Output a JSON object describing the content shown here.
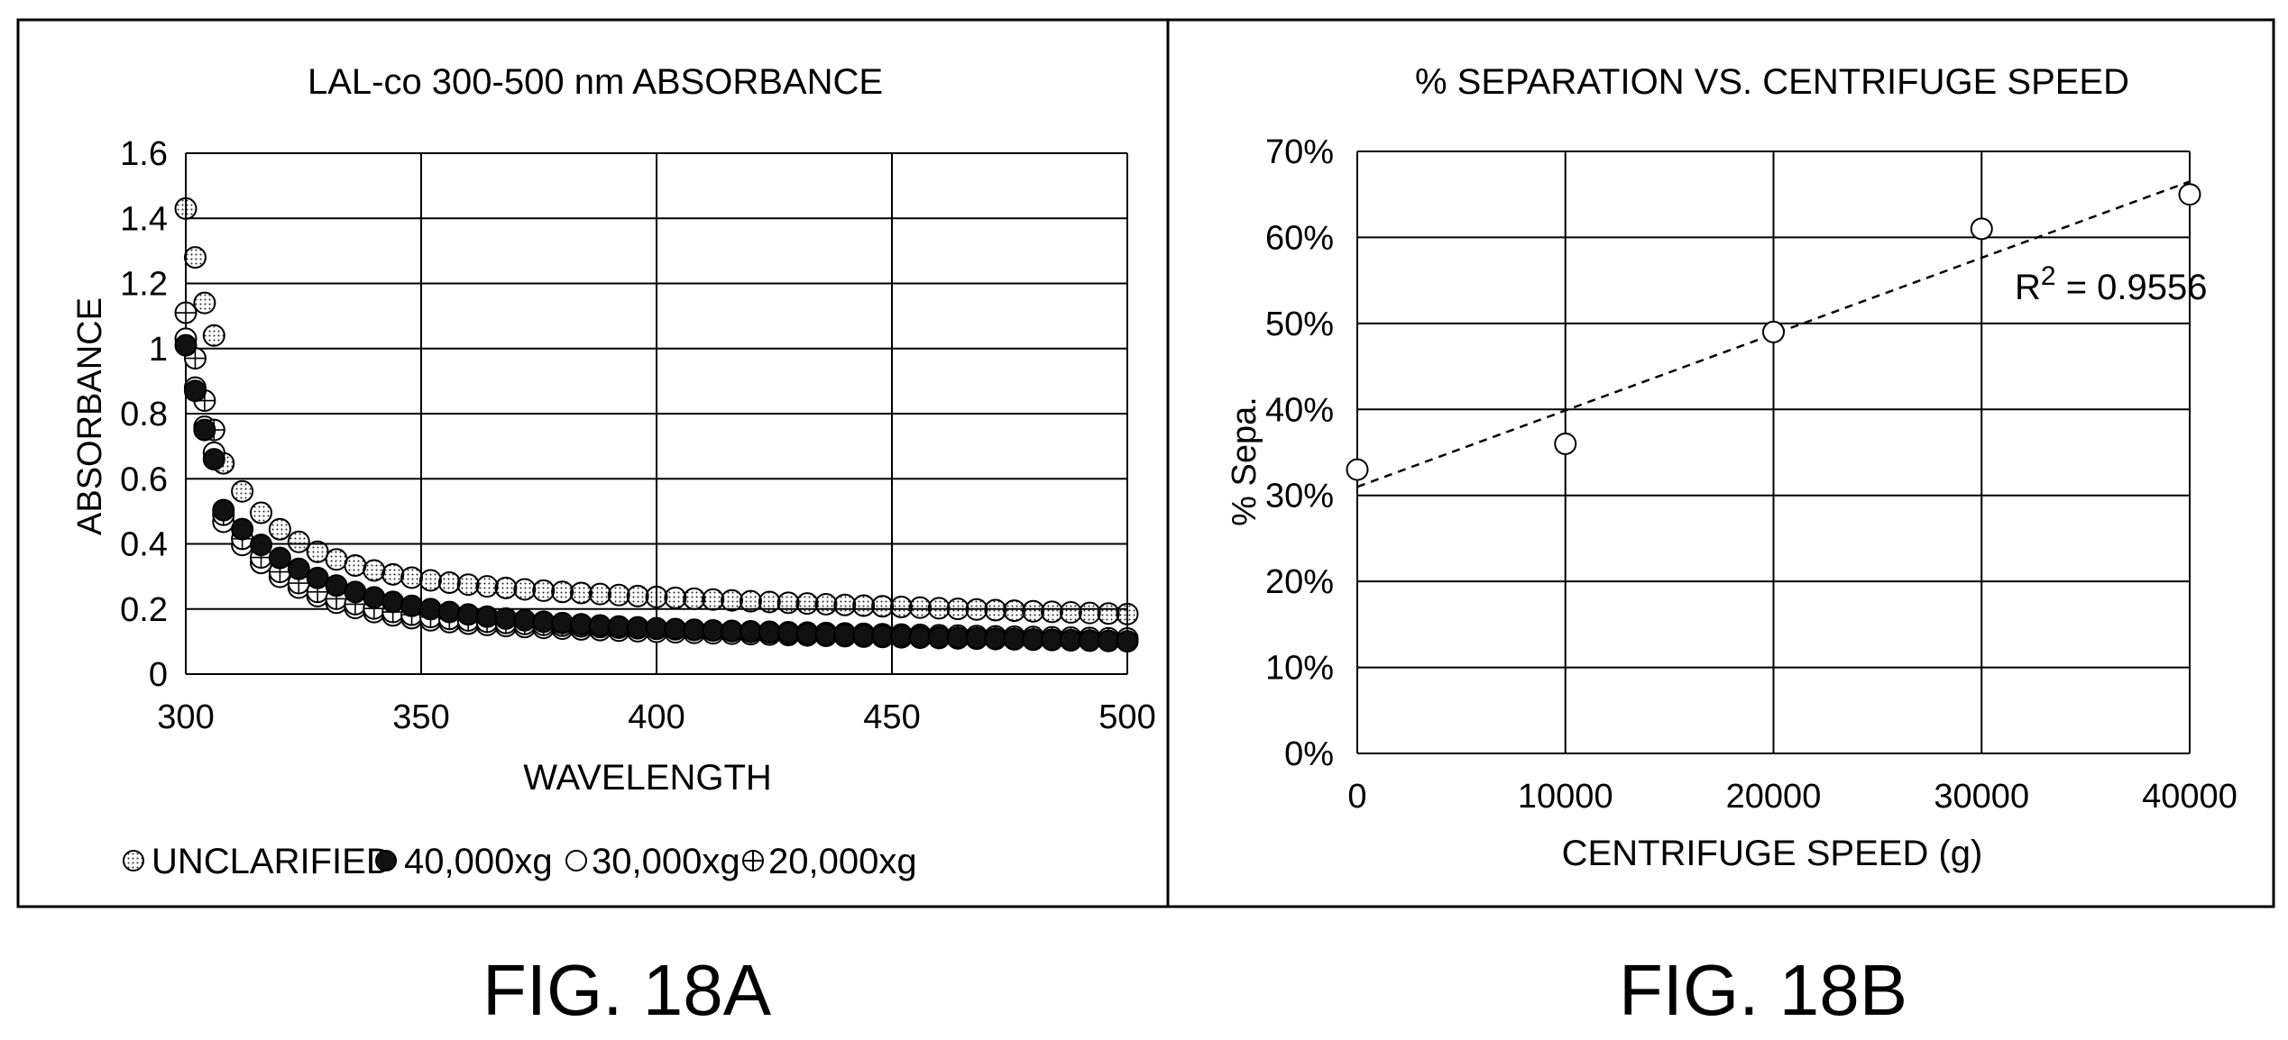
{
  "figures": [
    {
      "caption": "FIG. 18A"
    },
    {
      "caption": "FIG. 18B"
    }
  ],
  "chart_data": [
    {
      "type": "scatter",
      "title": "LAL-co 300-500 nm ABSORBANCE",
      "xlabel": "WAVELENGTH",
      "ylabel": "ABSORBANCE",
      "xlim": [
        300,
        500
      ],
      "ylim": [
        0,
        1.6
      ],
      "xticks": [
        "300",
        "350",
        "400",
        "450",
        "500"
      ],
      "yticks": [
        "0",
        "0.2",
        "0.4",
        "0.6",
        "0.8",
        "1",
        "1.2",
        "1.4",
        "1.6"
      ],
      "grid": true,
      "legend_position": "bottom",
      "series": [
        {
          "name": "UNCLARIFIED",
          "marker": "dotted-circle",
          "model": {
            "a": 0.58,
            "b": 0.13,
            "k": 0.14,
            "c": 0.2
          },
          "peak": [
            [
              300,
              1.43
            ],
            [
              302,
              1.28
            ],
            [
              304,
              1.14
            ],
            [
              306,
              1.04
            ]
          ]
        },
        {
          "name": "40,000xg",
          "marker": "filled-circle",
          "model": {
            "a": 0.45,
            "b": 0.11,
            "k": 0.2,
            "c": 0.1
          },
          "peak": [
            [
              300,
              1.01
            ],
            [
              302,
              0.87
            ],
            [
              304,
              0.75
            ],
            [
              306,
              0.66
            ]
          ]
        },
        {
          "name": "30,000xg",
          "marker": "open-circle",
          "model": {
            "a": 0.5,
            "b": 0.07,
            "k": 0.15,
            "c": 0.11
          },
          "peak": [
            [
              300,
              1.03
            ],
            [
              302,
              0.88
            ],
            [
              304,
              0.76
            ],
            [
              306,
              0.68
            ]
          ]
        },
        {
          "name": "20,000xg",
          "marker": "crossed-circle",
          "model": {
            "a": 0.52,
            "b": 0.07,
            "k": 0.15,
            "c": 0.12
          },
          "peak": [
            [
              300,
              1.11
            ],
            [
              302,
              0.97
            ],
            [
              304,
              0.84
            ],
            [
              306,
              0.75
            ]
          ]
        }
      ],
      "x_step": 4
    },
    {
      "type": "scatter",
      "title": "% SEPARATION VS. CENTRIFUGE SPEED",
      "xlabel": "CENTRIFUGE SPEED (g)",
      "ylabel": "% Sepa.",
      "xlim": [
        0,
        40000
      ],
      "ylim": [
        0,
        70
      ],
      "xticks": [
        "0",
        "10000",
        "20000",
        "30000",
        "40000"
      ],
      "yticks": [
        "0%",
        "10%",
        "20%",
        "30%",
        "40%",
        "50%",
        "60%",
        "70%"
      ],
      "grid": true,
      "series": [
        {
          "marker": "open-circle",
          "x": [
            0,
            10000,
            20000,
            30000,
            40000
          ],
          "y": [
            33,
            36,
            49,
            61,
            65
          ]
        }
      ],
      "trendline": {
        "type": "linear",
        "style": "dashed",
        "x": [
          0,
          40000
        ],
        "y": [
          31,
          66.5
        ]
      },
      "annotation": {
        "text": "R",
        "sup": "2",
        "rest": " = 0.9556"
      }
    }
  ]
}
